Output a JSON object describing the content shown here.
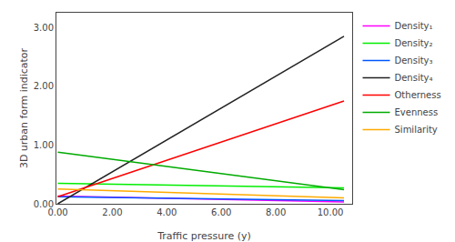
{
  "chart_data": {
    "type": "line",
    "x": [
      0.0,
      10.5
    ],
    "series": [
      {
        "name": "Density₁",
        "color": "#ff00ff",
        "values": [
          0.13,
          0.03
        ]
      },
      {
        "name": "Density₂",
        "color": "#00ee00",
        "values": [
          0.35,
          0.27
        ]
      },
      {
        "name": "Density₃",
        "color": "#0055ff",
        "values": [
          0.12,
          0.055
        ]
      },
      {
        "name": "Density₄",
        "color": "#222222",
        "values": [
          0.0,
          2.85
        ]
      },
      {
        "name": "Otherness",
        "color": "#ff0000",
        "values": [
          0.12,
          1.75
        ]
      },
      {
        "name": "Evenness",
        "color": "#00aa00",
        "values": [
          0.88,
          0.24
        ]
      },
      {
        "name": "Similarity",
        "color": "#ffaa00",
        "values": [
          0.25,
          0.1
        ]
      }
    ],
    "xlabel": "Traffic pressure (y)",
    "ylabel": "3D urban form indicator",
    "xlim": [
      -0.05,
      10.8
    ],
    "ylim": [
      0.0,
      3.25
    ],
    "xticks": [
      {
        "value": 0.0,
        "label": "0.00"
      },
      {
        "value": 2.0,
        "label": "2.00"
      },
      {
        "value": 4.0,
        "label": "4.00"
      },
      {
        "value": 6.0,
        "label": "6.00"
      },
      {
        "value": 8.0,
        "label": "8.00"
      },
      {
        "value": 10.0,
        "label": "10.00"
      }
    ],
    "yticks": [
      {
        "value": 0.0,
        "label": "0.00"
      },
      {
        "value": 1.0,
        "label": "1.00"
      },
      {
        "value": 2.0,
        "label": "2.00"
      },
      {
        "value": 3.0,
        "label": "3.00"
      }
    ],
    "grid": false,
    "legend": "upper right"
  }
}
